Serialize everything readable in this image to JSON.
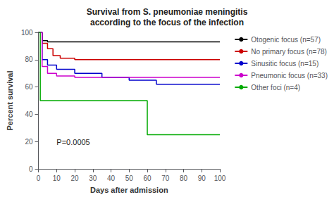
{
  "chart_data": {
    "type": "line",
    "title": "Survival from S. pneumoniae meningitis\naccording to the focus of the infection",
    "xlabel": "Days after admission",
    "ylabel": "Percent survival",
    "xlim": [
      0,
      100
    ],
    "ylim": [
      0,
      100
    ],
    "xticks": [
      0,
      10,
      20,
      30,
      40,
      50,
      60,
      70,
      80,
      90,
      100
    ],
    "yticks": [
      0,
      20,
      40,
      60,
      80,
      100
    ],
    "grid": false,
    "legend": "right",
    "annotations": [
      {
        "text": "P=0.0005",
        "x": 10,
        "y": 17
      }
    ],
    "series": [
      {
        "name": "Otogenic focus (n=57)",
        "color": "#000000",
        "x": [
          0,
          2,
          2,
          5,
          5,
          100
        ],
        "values": [
          100,
          100,
          94,
          94,
          93,
          93
        ]
      },
      {
        "name": "No primary focus (n=78)",
        "color": "#cc0000",
        "x": [
          0,
          2,
          2,
          5,
          5,
          8,
          8,
          12,
          12,
          20,
          20,
          30,
          30,
          100
        ],
        "values": [
          100,
          100,
          92,
          92,
          88,
          88,
          83,
          83,
          81,
          81,
          80,
          80,
          80,
          80
        ]
      },
      {
        "name": "Sinusitic focus (n=15)",
        "color": "#0000cc",
        "x": [
          0,
          2,
          2,
          5,
          5,
          10,
          10,
          20,
          20,
          35,
          35,
          50,
          50,
          65,
          65,
          100
        ],
        "values": [
          100,
          100,
          80,
          80,
          76,
          76,
          73,
          73,
          70,
          70,
          67,
          67,
          65,
          65,
          62,
          62
        ]
      },
      {
        "name": "Pneumonic focus (n=33)",
        "color": "#cc00cc",
        "x": [
          0,
          2,
          2,
          5,
          5,
          10,
          10,
          20,
          20,
          35,
          35,
          100
        ],
        "values": [
          100,
          100,
          75,
          75,
          70,
          70,
          68,
          68,
          67,
          67,
          67,
          67
        ]
      },
      {
        "name": "Other foci (n=4)",
        "color": "#00aa00",
        "x": [
          0,
          1,
          1,
          5,
          5,
          60,
          60,
          100
        ],
        "values": [
          100,
          100,
          50,
          50,
          50,
          50,
          25,
          25
        ]
      }
    ]
  }
}
